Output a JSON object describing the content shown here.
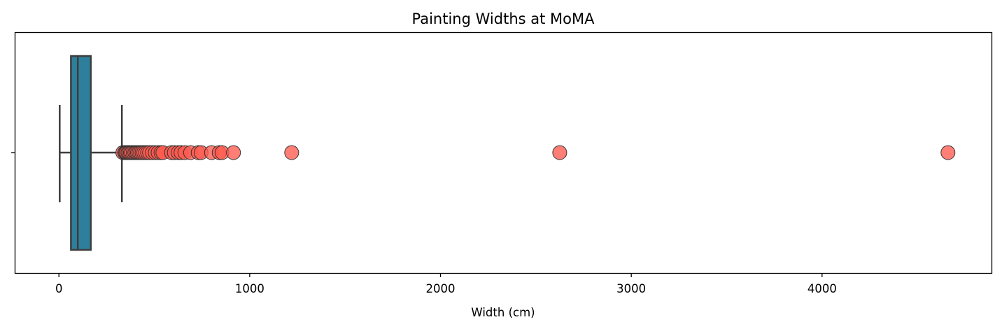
{
  "chart_data": {
    "type": "box",
    "title": "Painting Widths at MoMA",
    "xlabel": "Width (cm)",
    "ylabel": "",
    "xlim": [
      -230,
      4890
    ],
    "xticks": [
      0,
      1000,
      2000,
      3000,
      4000
    ],
    "xtick_labels": [
      "0",
      "1000",
      "2000",
      "3000",
      "4000"
    ],
    "grid": false,
    "box": {
      "whisker_low": 4,
      "q1": 63,
      "median": 99,
      "q3": 167,
      "whisker_high": 330
    },
    "outliers": [
      335,
      345,
      350,
      355,
      362,
      368,
      375,
      382,
      390,
      398,
      405,
      412,
      420,
      428,
      436,
      445,
      455,
      465,
      475,
      490,
      505,
      520,
      535,
      545,
      590,
      605,
      625,
      640,
      660,
      690,
      730,
      745,
      800,
      840,
      855,
      915,
      1220,
      2625,
      4660
    ],
    "colors": {
      "box_fill": "#2e7f9b",
      "box_edge": "#3d3d3d",
      "outlier_fill": "#ff5a4e",
      "outlier_edge": "#333333"
    }
  }
}
